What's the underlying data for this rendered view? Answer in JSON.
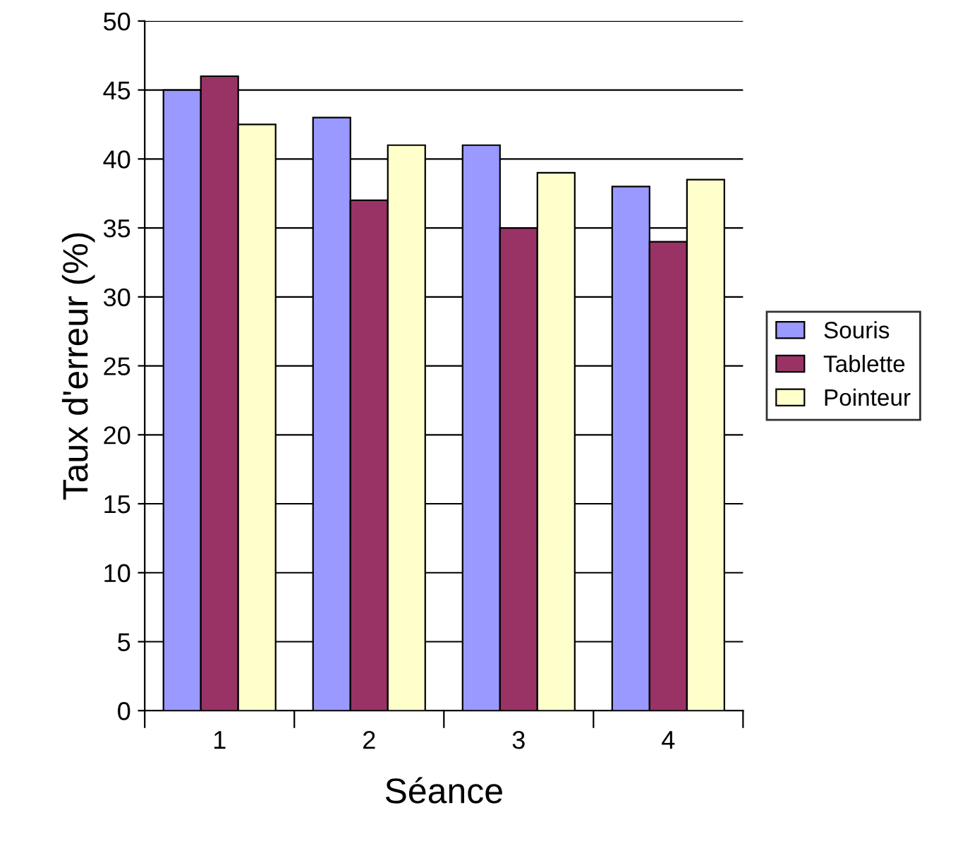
{
  "chart_data": {
    "type": "bar",
    "xlabel": "Séance",
    "ylabel": "Taux d'erreur (%)",
    "categories": [
      "1",
      "2",
      "3",
      "4"
    ],
    "series": [
      {
        "name": "Souris",
        "color": "#9999ff",
        "values": [
          45,
          43,
          41,
          38
        ]
      },
      {
        "name": "Tablette",
        "color": "#993366",
        "values": [
          46,
          37,
          35,
          34
        ]
      },
      {
        "name": "Pointeur",
        "color": "#ffffcc",
        "values": [
          42.5,
          41,
          39,
          38.5
        ]
      }
    ],
    "ylim": [
      0,
      50
    ],
    "yticks": [
      0,
      5,
      10,
      15,
      20,
      25,
      30,
      35,
      40,
      45,
      50
    ],
    "grid": "y",
    "legend": "right"
  }
}
